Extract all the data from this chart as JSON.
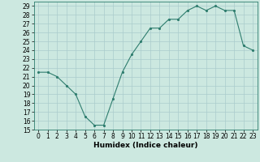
{
  "x": [
    0,
    1,
    2,
    3,
    4,
    5,
    6,
    7,
    8,
    9,
    10,
    11,
    12,
    13,
    14,
    15,
    16,
    17,
    18,
    19,
    20,
    21,
    22,
    23
  ],
  "y": [
    21.5,
    21.5,
    21.0,
    20.0,
    19.0,
    16.5,
    15.5,
    15.5,
    18.5,
    21.5,
    23.5,
    25.0,
    26.5,
    26.5,
    27.5,
    27.5,
    28.5,
    29.0,
    28.5,
    29.0,
    28.5,
    28.5,
    24.5,
    24.0
  ],
  "xlabel": "Humidex (Indice chaleur)",
  "ylim": [
    15,
    29.5
  ],
  "xlim": [
    -0.5,
    23.5
  ],
  "yticks": [
    15,
    16,
    17,
    18,
    19,
    20,
    21,
    22,
    23,
    24,
    25,
    26,
    27,
    28,
    29
  ],
  "xticks": [
    0,
    1,
    2,
    3,
    4,
    5,
    6,
    7,
    8,
    9,
    10,
    11,
    12,
    13,
    14,
    15,
    16,
    17,
    18,
    19,
    20,
    21,
    22,
    23
  ],
  "line_color": "#2e7d6e",
  "marker_color": "#2e7d6e",
  "bg_color": "#cce8e0",
  "grid_color": "#aacccc",
  "label_fontsize": 6.5,
  "tick_fontsize": 5.5
}
